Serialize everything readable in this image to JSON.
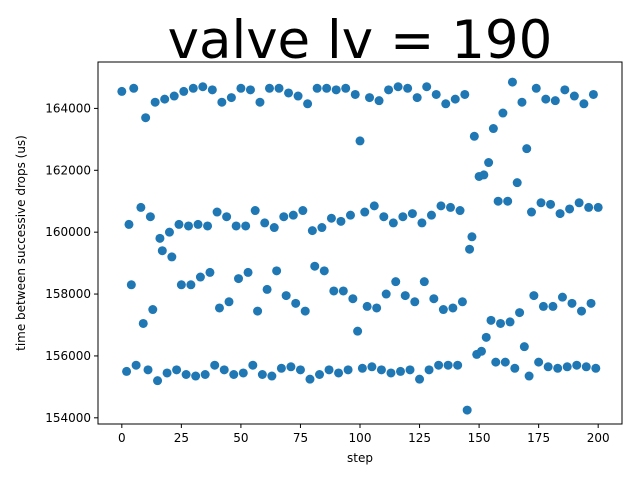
{
  "chart_data": {
    "type": "scatter",
    "title": "valve lv = 190",
    "xlabel": "step",
    "ylabel": "time between successive drops (us)",
    "xlim": [
      -10,
      210
    ],
    "ylim": [
      153800,
      165500
    ],
    "x_ticks": [
      0,
      25,
      50,
      75,
      100,
      125,
      150,
      175,
      200
    ],
    "y_ticks": [
      154000,
      156000,
      158000,
      160000,
      162000,
      164000
    ],
    "x_tick_labels": [
      "0",
      "25",
      "50",
      "75",
      "100",
      "125",
      "150",
      "175",
      "200"
    ],
    "y_tick_labels": [
      "154000",
      "156000",
      "158000",
      "160000",
      "162000",
      "164000"
    ],
    "grid": false,
    "legend": "none",
    "marker_color": "#1f77b4",
    "series": [
      {
        "points": [
          [
            0,
            164550
          ],
          [
            2,
            155500
          ],
          [
            3,
            160250
          ],
          [
            4,
            158300
          ],
          [
            5,
            164650
          ],
          [
            6,
            155700
          ],
          [
            8,
            160800
          ],
          [
            9,
            157050
          ],
          [
            10,
            163700
          ],
          [
            11,
            155550
          ],
          [
            12,
            160500
          ],
          [
            13,
            157500
          ],
          [
            14,
            164200
          ],
          [
            15,
            155200
          ],
          [
            16,
            159800
          ],
          [
            17,
            159400
          ],
          [
            18,
            164300
          ],
          [
            19,
            155450
          ],
          [
            20,
            160000
          ],
          [
            21,
            159200
          ],
          [
            22,
            164400
          ],
          [
            23,
            155550
          ],
          [
            24,
            160250
          ],
          [
            25,
            158300
          ],
          [
            26,
            164550
          ],
          [
            27,
            155400
          ],
          [
            28,
            160200
          ],
          [
            29,
            158300
          ],
          [
            30,
            164650
          ],
          [
            31,
            155350
          ],
          [
            32,
            160250
          ],
          [
            33,
            158550
          ],
          [
            34,
            164700
          ],
          [
            35,
            155400
          ],
          [
            36,
            160200
          ],
          [
            37,
            158700
          ],
          [
            38,
            164600
          ],
          [
            39,
            155700
          ],
          [
            40,
            160650
          ],
          [
            41,
            157550
          ],
          [
            42,
            164200
          ],
          [
            43,
            155550
          ],
          [
            44,
            160500
          ],
          [
            45,
            157750
          ],
          [
            46,
            164350
          ],
          [
            47,
            155400
          ],
          [
            48,
            160200
          ],
          [
            49,
            158500
          ],
          [
            50,
            164650
          ],
          [
            51,
            155450
          ],
          [
            52,
            160200
          ],
          [
            53,
            158700
          ],
          [
            54,
            164600
          ],
          [
            55,
            155700
          ],
          [
            56,
            160700
          ],
          [
            57,
            157450
          ],
          [
            58,
            164200
          ],
          [
            59,
            155400
          ],
          [
            60,
            160300
          ],
          [
            61,
            158150
          ],
          [
            62,
            164650
          ],
          [
            63,
            155350
          ],
          [
            64,
            160150
          ],
          [
            65,
            158750
          ],
          [
            66,
            164650
          ],
          [
            67,
            155600
          ],
          [
            68,
            160500
          ],
          [
            69,
            157950
          ],
          [
            70,
            164500
          ],
          [
            71,
            155650
          ],
          [
            72,
            160550
          ],
          [
            73,
            157700
          ],
          [
            74,
            164400
          ],
          [
            75,
            155550
          ],
          [
            76,
            160700
          ],
          [
            77,
            157450
          ],
          [
            78,
            164150
          ],
          [
            79,
            155250
          ],
          [
            80,
            160050
          ],
          [
            81,
            158900
          ],
          [
            82,
            164650
          ],
          [
            83,
            155400
          ],
          [
            84,
            160150
          ],
          [
            85,
            158750
          ],
          [
            86,
            164650
          ],
          [
            87,
            155550
          ],
          [
            88,
            160450
          ],
          [
            89,
            158100
          ],
          [
            90,
            164600
          ],
          [
            91,
            155450
          ],
          [
            92,
            160350
          ],
          [
            93,
            158100
          ],
          [
            94,
            164650
          ],
          [
            95,
            155550
          ],
          [
            96,
            160550
          ],
          [
            97,
            157850
          ],
          [
            98,
            164450
          ],
          [
            99,
            156800
          ],
          [
            100,
            162950
          ],
          [
            101,
            155600
          ],
          [
            102,
            160650
          ],
          [
            103,
            157600
          ],
          [
            104,
            164350
          ],
          [
            105,
            155650
          ],
          [
            106,
            160850
          ],
          [
            107,
            157550
          ],
          [
            108,
            164250
          ],
          [
            109,
            155550
          ],
          [
            110,
            160500
          ],
          [
            111,
            158000
          ],
          [
            112,
            164600
          ],
          [
            113,
            155450
          ],
          [
            114,
            160300
          ],
          [
            115,
            158400
          ],
          [
            116,
            164700
          ],
          [
            117,
            155500
          ],
          [
            118,
            160500
          ],
          [
            119,
            157950
          ],
          [
            120,
            164650
          ],
          [
            121,
            155550
          ],
          [
            122,
            160600
          ],
          [
            123,
            157750
          ],
          [
            124,
            164350
          ],
          [
            125,
            155250
          ],
          [
            126,
            160300
          ],
          [
            127,
            158400
          ],
          [
            128,
            164700
          ],
          [
            129,
            155550
          ],
          [
            130,
            160550
          ],
          [
            131,
            157850
          ],
          [
            132,
            164450
          ],
          [
            133,
            155700
          ],
          [
            134,
            160850
          ],
          [
            135,
            157500
          ],
          [
            136,
            164150
          ],
          [
            137,
            155700
          ],
          [
            138,
            160800
          ],
          [
            139,
            157550
          ],
          [
            140,
            164300
          ],
          [
            141,
            155700
          ],
          [
            142,
            160700
          ],
          [
            143,
            157750
          ],
          [
            144,
            164450
          ],
          [
            145,
            154250
          ],
          [
            146,
            159450
          ],
          [
            147,
            159850
          ],
          [
            148,
            163100
          ],
          [
            149,
            156050
          ],
          [
            150,
            161800
          ],
          [
            151,
            156150
          ],
          [
            152,
            161850
          ],
          [
            153,
            156600
          ],
          [
            154,
            162250
          ],
          [
            155,
            157150
          ],
          [
            156,
            163350
          ],
          [
            157,
            155800
          ],
          [
            158,
            161000
          ],
          [
            159,
            157050
          ],
          [
            160,
            163850
          ],
          [
            161,
            155800
          ],
          [
            162,
            161000
          ],
          [
            163,
            157100
          ],
          [
            164,
            164850
          ],
          [
            165,
            155600
          ],
          [
            166,
            161600
          ],
          [
            167,
            157400
          ],
          [
            168,
            164200
          ],
          [
            169,
            156300
          ],
          [
            170,
            162700
          ],
          [
            171,
            155350
          ],
          [
            172,
            160650
          ],
          [
            173,
            157950
          ],
          [
            174,
            164650
          ],
          [
            175,
            155800
          ],
          [
            176,
            160950
          ],
          [
            177,
            157600
          ],
          [
            178,
            164300
          ],
          [
            179,
            155650
          ],
          [
            180,
            160900
          ],
          [
            181,
            157600
          ],
          [
            182,
            164250
          ],
          [
            183,
            155600
          ],
          [
            184,
            160600
          ],
          [
            185,
            157900
          ],
          [
            186,
            164600
          ],
          [
            187,
            155650
          ],
          [
            188,
            160750
          ],
          [
            189,
            157700
          ],
          [
            190,
            164400
          ],
          [
            191,
            155700
          ],
          [
            192,
            160950
          ],
          [
            193,
            157450
          ],
          [
            194,
            164150
          ],
          [
            195,
            155650
          ],
          [
            196,
            160800
          ],
          [
            197,
            157700
          ],
          [
            198,
            164450
          ],
          [
            199,
            155600
          ],
          [
            200,
            160800
          ]
        ]
      }
    ]
  }
}
